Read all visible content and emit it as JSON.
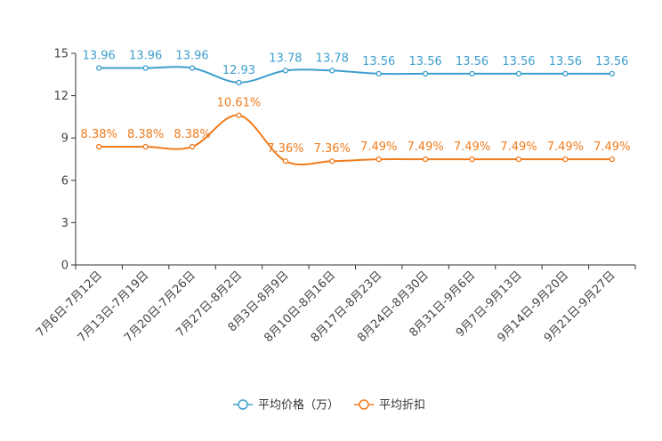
{
  "chart_data": {
    "type": "line",
    "categories": [
      "7月6日-7月12日",
      "7月13日-7月19日",
      "7月20日-7月26日",
      "7月27日-8月2日",
      "8月3日-8月9日",
      "8月10日-8月16日",
      "8月17日-8月23日",
      "8月24日-8月30日",
      "8月31日-9月6日",
      "9月7日-9月13日",
      "9月14日-9月20日",
      "9月21日-9月27日"
    ],
    "y_ticks": [
      "0",
      "3",
      "6",
      "9",
      "12",
      "15"
    ],
    "ylim": [
      0,
      15
    ],
    "series": [
      {
        "name": "平均价格（万）",
        "color": "#3d9fce",
        "values": [
          13.96,
          13.96,
          13.96,
          12.93,
          13.78,
          13.78,
          13.56,
          13.56,
          13.56,
          13.56,
          13.56,
          13.56
        ],
        "labels": [
          "13.96",
          "13.96",
          "13.96",
          "12.93",
          "13.78",
          "13.78",
          "13.56",
          "13.56",
          "13.56",
          "13.56",
          "13.56",
          "13.56"
        ]
      },
      {
        "name": "平均折扣",
        "color": "#f07b1c",
        "values": [
          8.38,
          8.38,
          8.38,
          10.61,
          7.36,
          7.36,
          7.49,
          7.49,
          7.49,
          7.49,
          7.49,
          7.49
        ],
        "labels": [
          "8.38%",
          "8.38%",
          "8.38%",
          "10.61%",
          "7.36%",
          "7.36%",
          "7.49%",
          "7.49%",
          "7.49%",
          "7.49%",
          "7.49%",
          "7.49%"
        ]
      }
    ],
    "legend_position": "bottom-center"
  }
}
